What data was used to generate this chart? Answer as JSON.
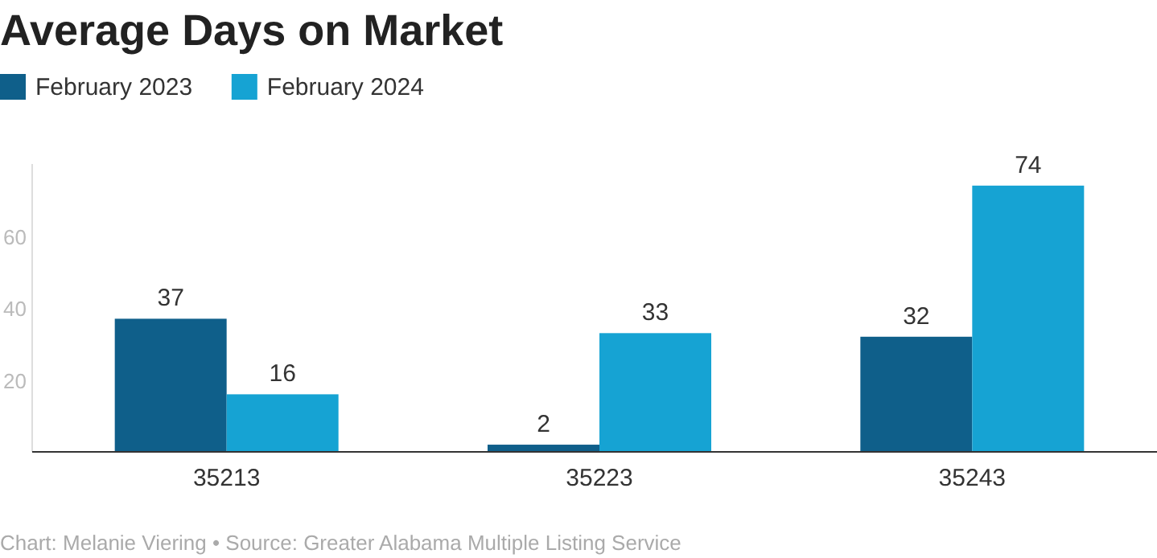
{
  "chart_data": {
    "type": "bar",
    "title": "Average Days on Market",
    "categories": [
      "35213",
      "35223",
      "35243"
    ],
    "series": [
      {
        "name": "February 2023",
        "color": "#0f5f8a",
        "values": [
          37,
          2,
          32
        ]
      },
      {
        "name": "February 2024",
        "color": "#16a3d3",
        "values": [
          16,
          33,
          74
        ]
      }
    ],
    "ylim": [
      0,
      80
    ],
    "yticks": [
      20,
      40,
      60
    ],
    "grid": false,
    "legend": "top left",
    "data_labels": true,
    "annotations": [
      "Chart: Melanie Viering • Source: Greater Alabama Multiple Listing Service"
    ]
  }
}
